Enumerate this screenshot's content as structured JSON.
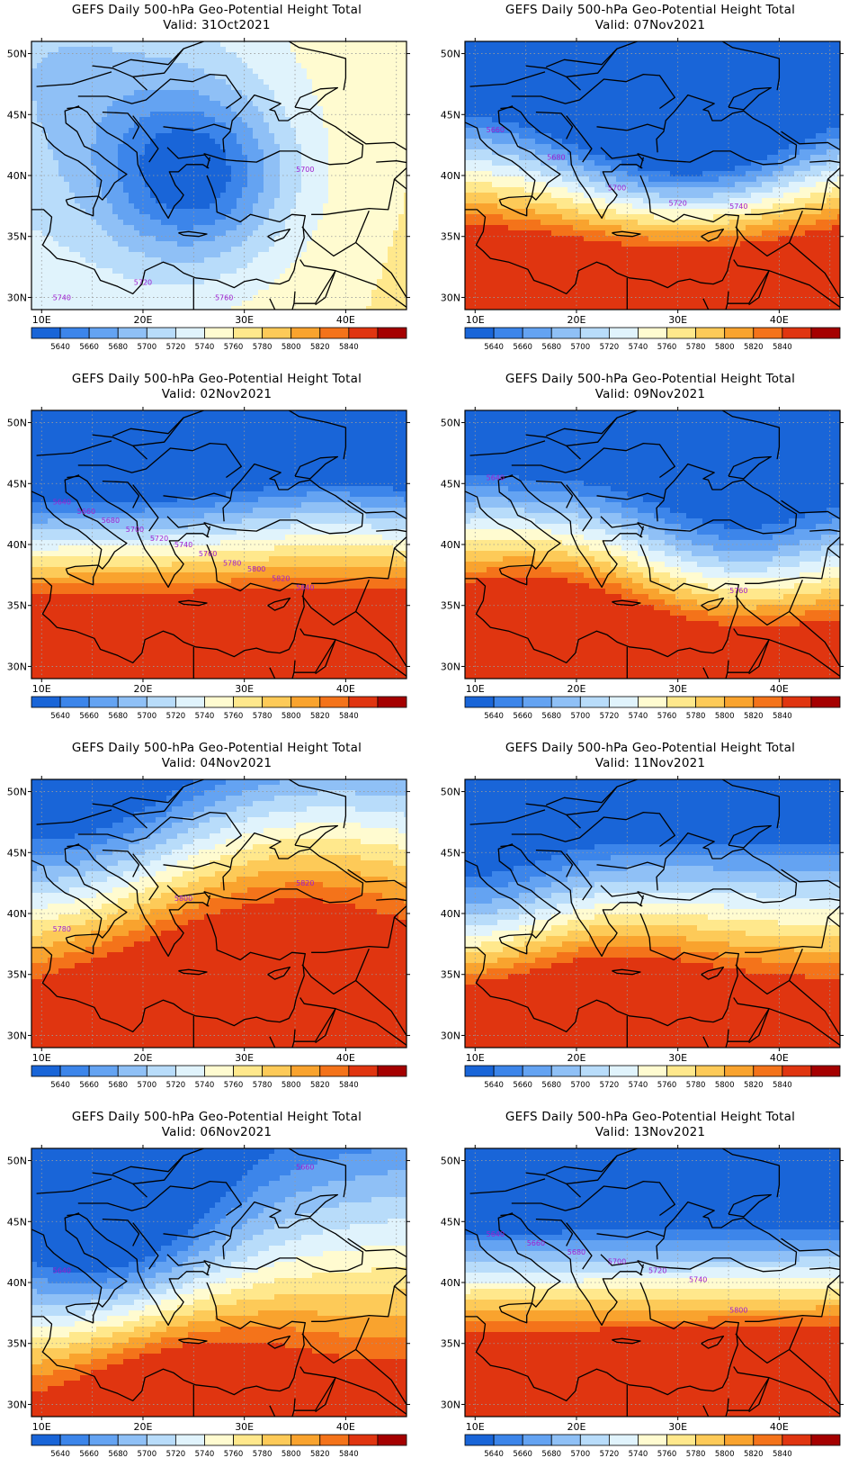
{
  "figure": {
    "title_prefix": "GEFS Daily 500-hPa Geo-Potential Height Total",
    "panels": [
      {
        "title": "GEFS Daily 500-hPa Geo-Potential Height Total",
        "valid": "Valid: 31Oct2021",
        "contour_labels": [
          "5740",
          "5720",
          "5760",
          "5700"
        ],
        "field": {
          "base": 5745,
          "gradient": [
            0.8,
            -0.3
          ],
          "centers": [
            [
              25,
              40,
              -115,
              5
            ],
            [
              14,
              48,
              -30,
              8
            ]
          ]
        }
      },
      {
        "title": "GEFS Daily 500-hPa Geo-Potential Height Total",
        "valid": "Valid: 07Nov2021",
        "contour_labels": [
          "5660",
          "5680",
          "5700",
          "5720",
          "5740"
        ],
        "field": {
          "base": 5760,
          "gradient": [
            0.3,
            -22
          ],
          "centers": [
            [
              31,
              44,
              -140,
              7
            ]
          ]
        }
      },
      {
        "title": "GEFS Daily 500-hPa Geo-Potential Height Total",
        "valid": "Valid: 02Nov2021",
        "contour_labels": [
          "5640",
          "5660",
          "5680",
          "5700",
          "5720",
          "5740",
          "5760",
          "5780",
          "5800",
          "5820",
          "5840"
        ],
        "field": {
          "base": 5735,
          "gradient": [
            0.2,
            -27
          ],
          "centers": [
            [
              38,
              47,
              40,
              6
            ]
          ]
        }
      },
      {
        "title": "GEFS Daily 500-hPa Geo-Potential Height Total",
        "valid": "Valid: 09Nov2021",
        "contour_labels": [
          "5640",
          "5760"
        ],
        "field": {
          "base": 5740,
          "gradient": [
            -0.4,
            -20
          ],
          "centers": [
            [
              36,
              41,
              -70,
              6
            ],
            [
              16,
              32,
              65,
              6
            ]
          ]
        }
      },
      {
        "title": "GEFS Daily 500-hPa Geo-Potential Height Total",
        "valid": "Valid: 04Nov2021",
        "contour_labels": [
          "5780",
          "5800",
          "5820"
        ],
        "field": {
          "base": 5765,
          "gradient": [
            0.5,
            -11
          ],
          "centers": [
            [
              30,
              35,
              110,
              12
            ],
            [
              14,
              48,
              -90,
              8
            ]
          ]
        }
      },
      {
        "title": "GEFS Daily 500-hPa Geo-Potential Height Total",
        "valid": "Valid: 11Nov2021",
        "contour_labels": [],
        "field": {
          "base": 5740,
          "gradient": [
            0.2,
            -18
          ],
          "centers": [
            [
              22,
              31,
              60,
              7
            ],
            [
              11,
              41,
              -50,
              5
            ]
          ]
        }
      },
      {
        "title": "GEFS Daily 500-hPa Geo-Potential Height Total",
        "valid": "Valid: 06Nov2021",
        "contour_labels": [
          "5640",
          "5660"
        ],
        "field": {
          "base": 5755,
          "gradient": [
            0.9,
            -10
          ],
          "centers": [
            [
              16,
              44,
              -130,
              7
            ],
            [
              23,
              31,
              85,
              7
            ]
          ]
        }
      },
      {
        "title": "GEFS Daily 500-hPa Geo-Potential Height Total",
        "valid": "Valid: 13Nov2021",
        "contour_labels": [
          "5640",
          "5660",
          "5680",
          "5700",
          "5720",
          "5740",
          "5800"
        ],
        "field": {
          "base": 5745,
          "gradient": [
            0.2,
            -25
          ],
          "centers": []
        }
      }
    ],
    "lat_ticks": [
      "50N",
      "45N",
      "40N",
      "35N",
      "30N"
    ],
    "lon_ticks": [
      "10E",
      "20E",
      "30E",
      "40E"
    ],
    "colorbar_labels": [
      "5640",
      "5660",
      "5680",
      "5700",
      "5720",
      "5740",
      "5760",
      "5780",
      "5800",
      "5820",
      "5840"
    ],
    "colors": [
      "#1965d8",
      "#3c85ea",
      "#64a3f2",
      "#8fc0f6",
      "#b8dcfa",
      "#e0f3fc",
      "#fffbd0",
      "#ffe88c",
      "#fdca58",
      "#f9a32e",
      "#f4731a",
      "#e03510",
      "#a50000"
    ],
    "contour_color": "#a020d0",
    "coast_color": "#000000"
  }
}
